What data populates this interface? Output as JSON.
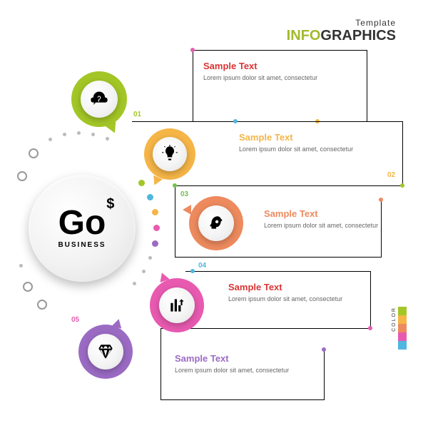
{
  "header": {
    "top": "Template",
    "left": "INFO",
    "right": "GRAPHICS"
  },
  "hub": {
    "main": "Go",
    "dollar": "$",
    "sub": "BUSINESS"
  },
  "colors": {
    "n1": "#a3c626",
    "n2": "#f5b547",
    "n3": "#ed8a5e",
    "n4": "#e85ab0",
    "n5": "#9b6bc4",
    "dot1": "#e85ab0",
    "dot2": "#f5b547",
    "dot3": "#4fb6e0",
    "dot4": "#6fc24a",
    "dot5": "#4fb6e0"
  },
  "legend_colors": [
    "#a3c626",
    "#f5b547",
    "#ed8a5e",
    "#e85ab0",
    "#4fb6e0"
  ],
  "legend_label": "COLOR",
  "nodes": [
    {
      "num": "01",
      "title": "Sample Text",
      "body": "Lorem ipsum dolor sit amet, consectetur"
    },
    {
      "num": "02",
      "title": "Sample Text",
      "body": "Lorem ipsum dolor sit amet, consectetur"
    },
    {
      "num": "03",
      "title": "Sample Text",
      "body": "Lorem ipsum dolor sit amet, consectetur"
    },
    {
      "num": "04",
      "title": "Sample Text",
      "body": "Lorem ipsum dolor sit amet, consectetur"
    },
    {
      "num": "05",
      "title": "Sample Text",
      "body": "Lorem ipsum dolor sit amet, consectetur"
    }
  ]
}
